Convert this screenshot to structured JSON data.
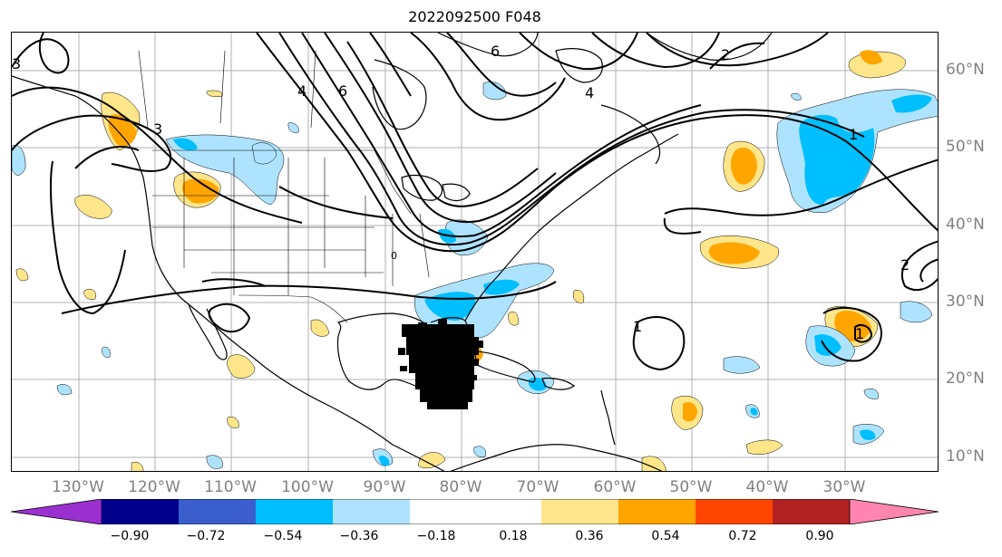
{
  "title": "2022092500 F048",
  "lon_labels": [
    "130°W",
    "120°W",
    "110°W",
    "100°W",
    "90°W",
    "80°W",
    "70°W",
    "60°W",
    "50°W",
    "40°W",
    "30°W"
  ],
  "lat_labels": [
    "60°N",
    "50°N",
    "40°N",
    "30°N",
    "20°N",
    "10°N"
  ],
  "colorbar": {
    "ticks": [
      "−0.90",
      "−0.72",
      "−0.54",
      "−0.36",
      "−0.18",
      "0.18",
      "0.36",
      "0.54",
      "0.72",
      "0.90"
    ],
    "colors": [
      "#9b30d0",
      "#00008b",
      "#3a5fcd",
      "#00bfff",
      "#aee3ff",
      "#ffffff",
      "#ffe68a",
      "#ffa500",
      "#ff4500",
      "#b22222",
      "#ff85b0"
    ]
  },
  "contour_labels": [
    "3",
    "3",
    "6",
    "4",
    "6",
    "4",
    "1",
    "1",
    "1",
    "2",
    "0",
    "2"
  ],
  "colors": {
    "positive_light": "#ffe68a",
    "positive_mid": "#ffa500",
    "negative_light": "#aee3ff",
    "negative_mid": "#00bfff",
    "contour": "#000000",
    "grid": "#b0b0b0",
    "labels": "#808080"
  }
}
